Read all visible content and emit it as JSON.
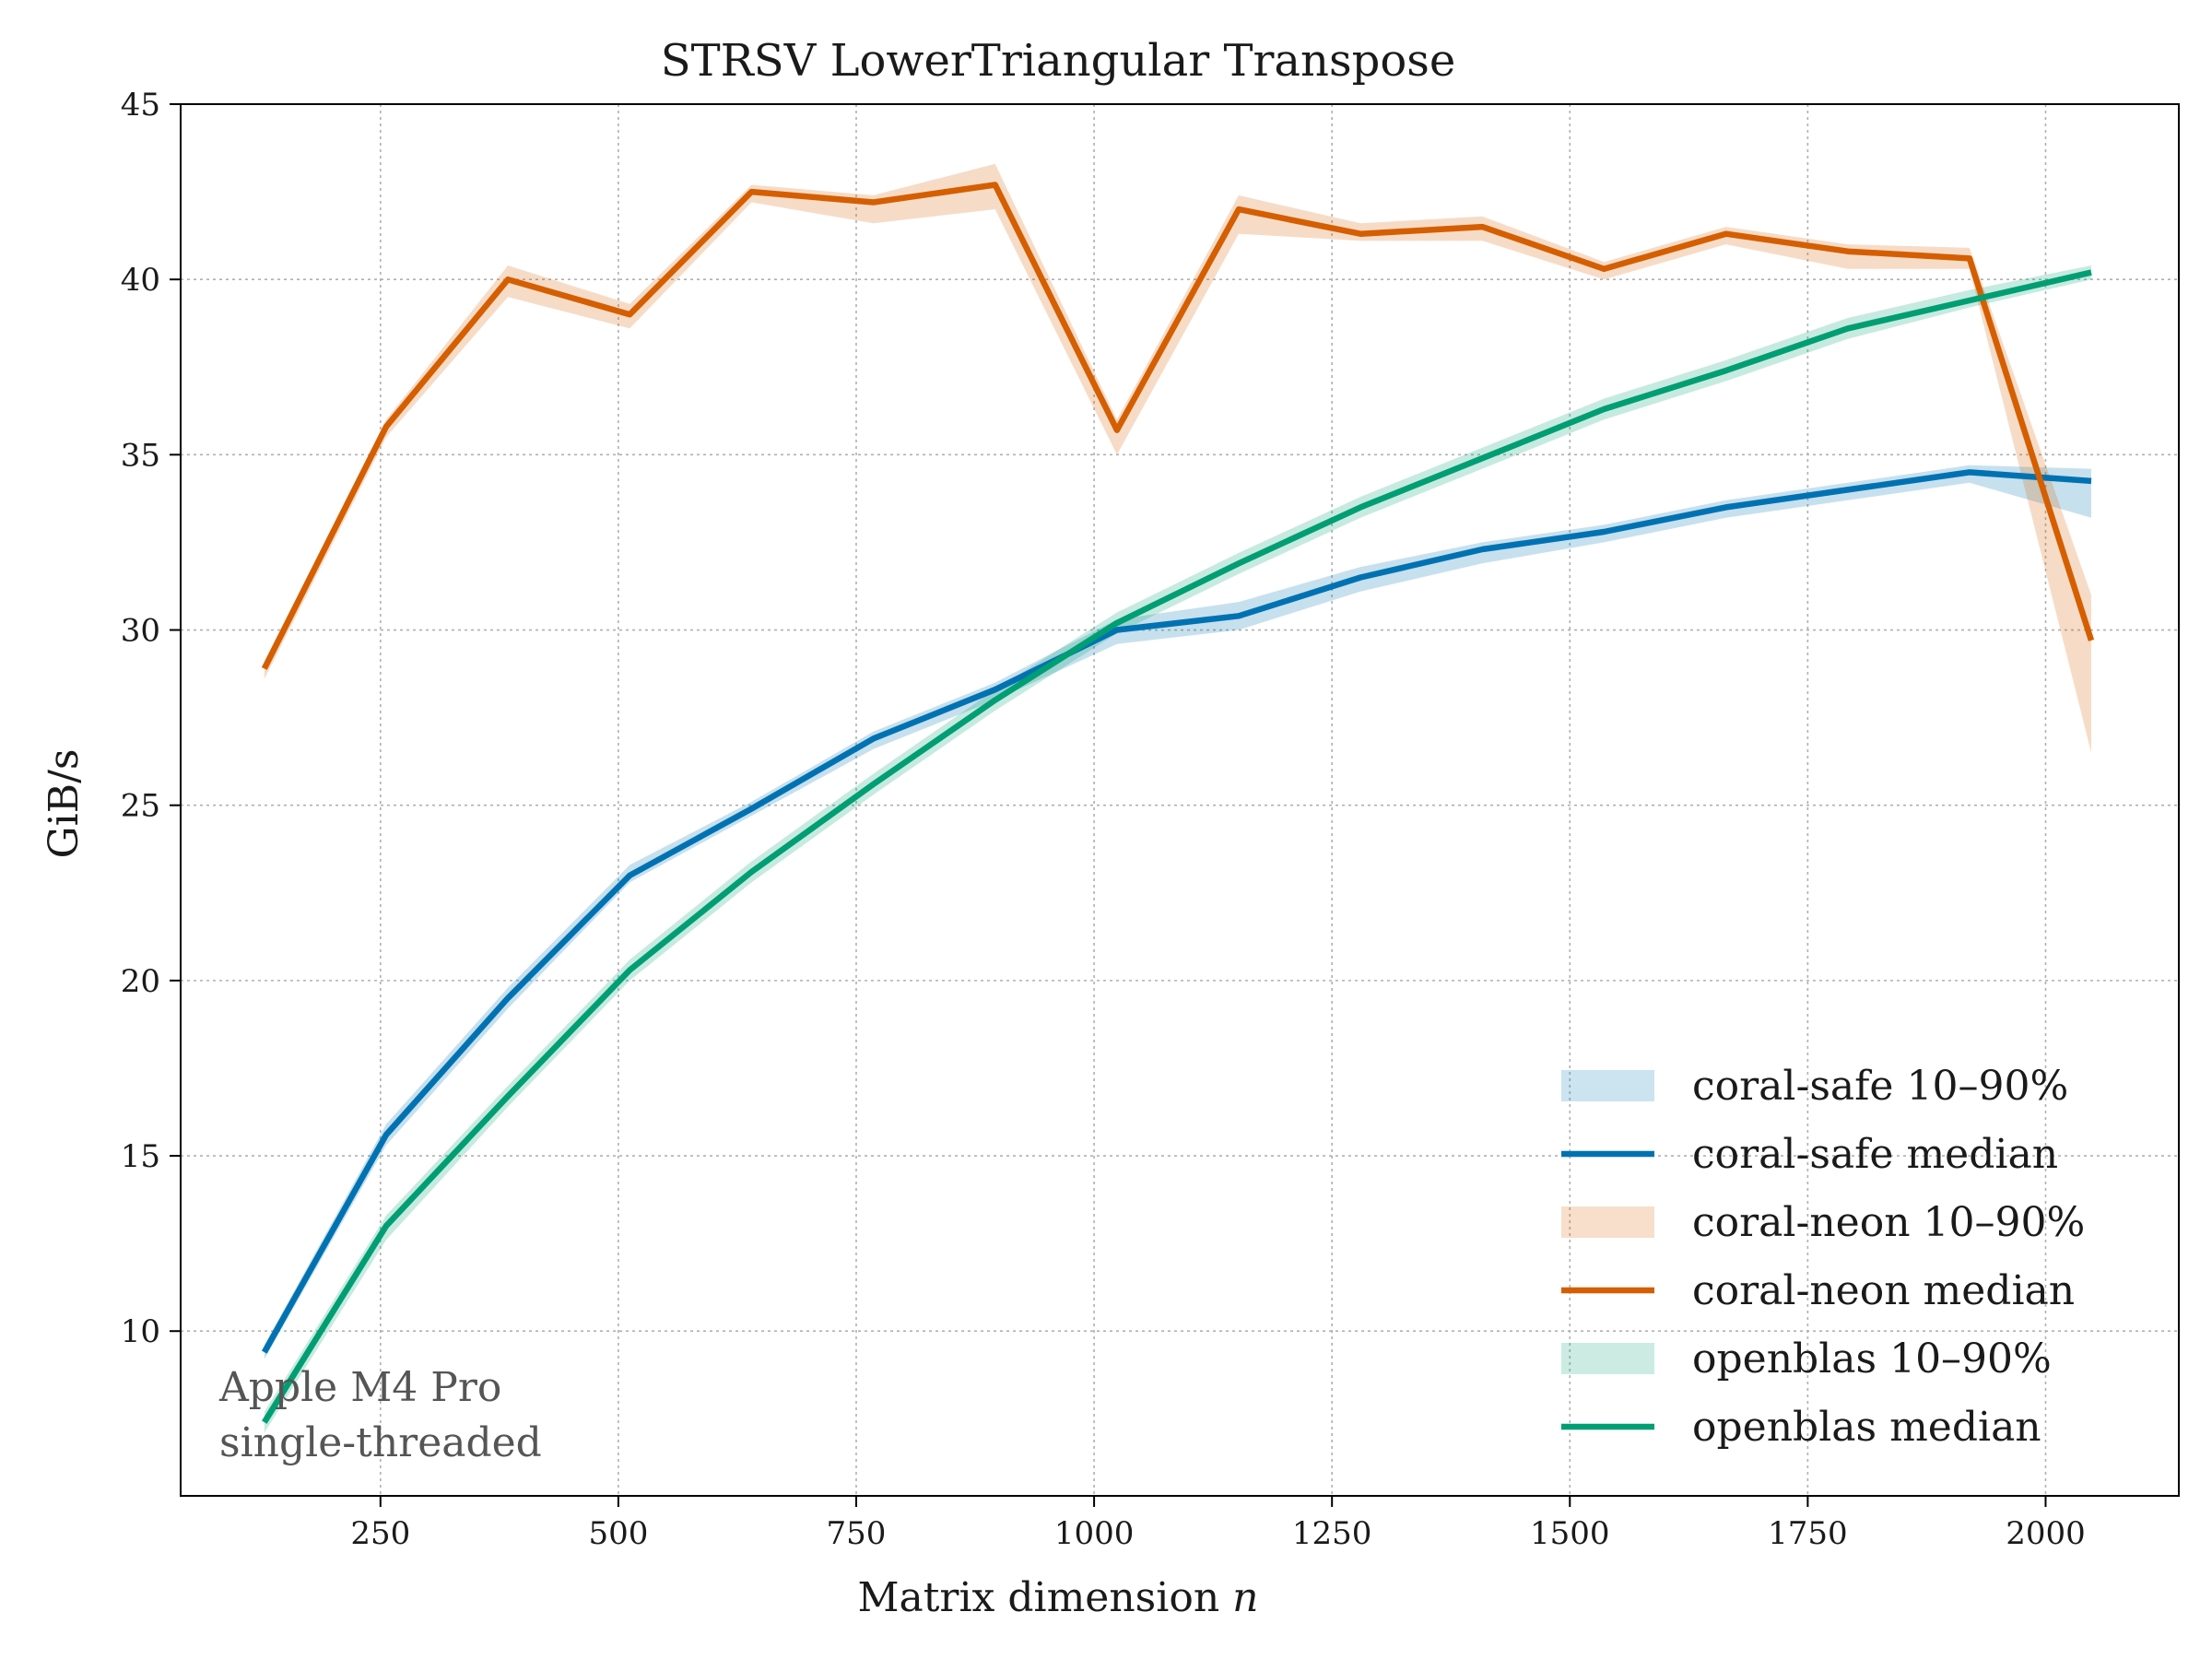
{
  "chart_data": {
    "type": "line",
    "title": "STRSV  LowerTriangular  Transpose",
    "xlabel": "Matrix dimension",
    "xlabel_var": "n",
    "ylabel": "GiB/s",
    "xlim": [
      40,
      2140
    ],
    "ylim": [
      5.3,
      45
    ],
    "xticks": [
      250,
      500,
      750,
      1000,
      1250,
      1500,
      1750,
      2000
    ],
    "yticks": [
      10,
      15,
      20,
      25,
      30,
      35,
      40,
      45
    ],
    "grid": true,
    "legend_position": "bottom-right",
    "x": [
      128,
      256,
      384,
      512,
      640,
      768,
      896,
      1024,
      1152,
      1280,
      1408,
      1536,
      1664,
      1792,
      1920,
      2048
    ],
    "series": [
      {
        "name": "coral-safe",
        "median_label": "coral-safe median",
        "band_label": "coral-safe 10–90%",
        "color": "#0072B2",
        "median": [
          9.4,
          15.6,
          19.5,
          23.0,
          24.9,
          26.9,
          28.3,
          30.0,
          30.4,
          31.5,
          32.3,
          32.8,
          33.5,
          34.0,
          34.5,
          34.25
        ],
        "p10": [
          9.2,
          15.3,
          19.2,
          22.8,
          24.7,
          26.6,
          28.0,
          29.6,
          30.0,
          31.1,
          31.9,
          32.5,
          33.2,
          33.7,
          34.2,
          33.2
        ],
        "p90": [
          9.6,
          15.9,
          19.8,
          23.3,
          25.1,
          27.1,
          28.5,
          30.3,
          30.8,
          31.8,
          32.5,
          33.0,
          33.7,
          34.2,
          34.7,
          34.6
        ]
      },
      {
        "name": "coral-neon",
        "median_label": "coral-neon median",
        "band_label": "coral-neon 10–90%",
        "color": "#D55E00",
        "median": [
          28.9,
          35.8,
          40.0,
          39.0,
          42.5,
          42.2,
          42.7,
          35.7,
          42.0,
          41.3,
          41.5,
          40.3,
          41.3,
          40.8,
          40.6,
          29.7
        ],
        "p10": [
          28.6,
          35.5,
          39.5,
          38.6,
          42.2,
          41.6,
          42.0,
          35.0,
          41.3,
          41.1,
          41.1,
          40.0,
          41.0,
          40.3,
          40.3,
          26.5
        ],
        "p90": [
          29.1,
          36.0,
          40.4,
          39.3,
          42.7,
          42.4,
          43.3,
          36.0,
          42.4,
          41.6,
          41.8,
          40.5,
          41.5,
          41.0,
          40.9,
          31.0
        ]
      },
      {
        "name": "openblas",
        "median_label": "openblas median",
        "band_label": "openblas 10–90%",
        "color": "#009E73",
        "median": [
          7.4,
          13.0,
          16.7,
          20.3,
          23.1,
          25.6,
          28.0,
          30.2,
          31.9,
          33.5,
          34.9,
          36.3,
          37.4,
          38.6,
          39.4,
          40.2
        ],
        "p10": [
          7.1,
          12.6,
          16.4,
          20.0,
          22.8,
          25.3,
          27.7,
          29.9,
          31.6,
          33.2,
          34.6,
          36.0,
          37.1,
          38.3,
          39.2,
          40.0
        ],
        "p90": [
          7.7,
          13.3,
          17.0,
          20.6,
          23.4,
          25.9,
          28.3,
          30.5,
          32.2,
          33.8,
          35.2,
          36.6,
          37.7,
          38.9,
          39.7,
          40.4
        ]
      }
    ],
    "annotations": [
      "Apple M4 Pro",
      "single-threaded"
    ]
  }
}
